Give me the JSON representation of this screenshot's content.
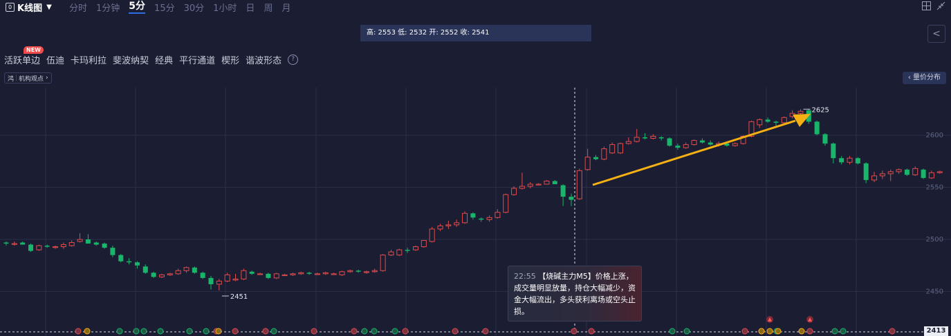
{
  "toolbar": {
    "chart_type_label": "K线图",
    "periods": [
      "分时",
      "1分钟",
      "5分",
      "15分",
      "30分",
      "1小时",
      "日",
      "周",
      "月"
    ],
    "active_period": "5分"
  },
  "ohlc_text": "高: 2553 低: 2532 开: 2552 收: 2541",
  "patterns": {
    "badge": "NEW",
    "items": [
      "活跃单边",
      "伍迪",
      "卡玛利拉",
      "斐波纳契",
      "经典",
      "平行通道",
      "楔形",
      "谐波形态"
    ],
    "help": "?"
  },
  "institution_button": {
    "icon_text": "鸿",
    "label": "机构观点"
  },
  "volume_profile_button": "量价分布",
  "price_axis_labels": [
    "2600",
    "2550",
    "2500",
    "2450"
  ],
  "current_price_tag": "2413",
  "annotations": {
    "high_label": "2625",
    "low_label": "2451"
  },
  "tooltip": {
    "time": "22:55",
    "title": "【烧碱主力M5】价格上涨，",
    "body": "成交量明显放量，持仓大幅减少，资金大幅流出，多头获利离场或空头止损。"
  },
  "colors": {
    "background": "#1b1e33",
    "up": "#e14b4b",
    "down": "#19b56a",
    "arrow": "#f5b014",
    "grid": "#2a2f48"
  },
  "chart_data": {
    "type": "candlestick",
    "ylim": [
      2413,
      2625
    ],
    "yticks": [
      2600,
      2550,
      2500,
      2450
    ],
    "high": 2625,
    "low": 2451,
    "candles": [
      [
        2497,
        2498,
        2494,
        2496
      ],
      [
        2496,
        2498,
        2494,
        2496
      ],
      [
        2497,
        2498,
        2495,
        2495
      ],
      [
        2495,
        2496,
        2488,
        2489
      ],
      [
        2490,
        2495,
        2489,
        2494
      ],
      [
        2494,
        2495,
        2492,
        2493
      ],
      [
        2493,
        2494,
        2491,
        2493
      ],
      [
        2493,
        2497,
        2491,
        2495
      ],
      [
        2494,
        2499,
        2493,
        2497
      ],
      [
        2498,
        2506,
        2497,
        2500
      ],
      [
        2500,
        2505,
        2496,
        2496
      ],
      [
        2497,
        2498,
        2494,
        2495
      ],
      [
        2496,
        2497,
        2491,
        2492
      ],
      [
        2492,
        2494,
        2483,
        2485
      ],
      [
        2485,
        2486,
        2478,
        2479
      ],
      [
        2479,
        2482,
        2476,
        2478
      ],
      [
        2478,
        2479,
        2472,
        2475
      ],
      [
        2474,
        2476,
        2467,
        2468
      ],
      [
        2468,
        2469,
        2463,
        2464
      ],
      [
        2464,
        2467,
        2463,
        2466
      ],
      [
        2466,
        2468,
        2465,
        2467
      ],
      [
        2467,
        2472,
        2466,
        2470
      ],
      [
        2470,
        2474,
        2468,
        2473
      ],
      [
        2473,
        2474,
        2467,
        2468
      ],
      [
        2468,
        2469,
        2462,
        2463
      ],
      [
        2463,
        2465,
        2452,
        2457
      ],
      [
        2457,
        2462,
        2451,
        2460
      ],
      [
        2460,
        2468,
        2459,
        2466
      ],
      [
        2461,
        2467,
        2460,
        2462
      ],
      [
        2462,
        2472,
        2461,
        2470
      ],
      [
        2469,
        2470,
        2466,
        2467
      ],
      [
        2467,
        2468,
        2466,
        2467
      ],
      [
        2467,
        2468,
        2462,
        2463
      ],
      [
        2463,
        2468,
        2462,
        2467
      ],
      [
        2466,
        2467,
        2465,
        2466
      ],
      [
        2466,
        2468,
        2465,
        2467
      ],
      [
        2467,
        2469,
        2466,
        2468
      ],
      [
        2468,
        2469,
        2466,
        2467
      ],
      [
        2467,
        2468,
        2466,
        2467
      ],
      [
        2467,
        2469,
        2466,
        2468
      ],
      [
        2467,
        2468,
        2466,
        2467
      ],
      [
        2466,
        2470,
        2465,
        2469
      ],
      [
        2469,
        2471,
        2468,
        2470
      ],
      [
        2470,
        2471,
        2468,
        2469
      ],
      [
        2469,
        2470,
        2467,
        2469
      ],
      [
        2469,
        2472,
        2468,
        2470
      ],
      [
        2470,
        2486,
        2469,
        2485
      ],
      [
        2485,
        2490,
        2484,
        2488
      ],
      [
        2485,
        2491,
        2484,
        2490
      ],
      [
        2490,
        2492,
        2487,
        2489
      ],
      [
        2490,
        2494,
        2489,
        2493
      ],
      [
        2493,
        2499,
        2492,
        2499
      ],
      [
        2498,
        2512,
        2497,
        2510
      ],
      [
        2510,
        2515,
        2508,
        2513
      ],
      [
        2513,
        2518,
        2510,
        2514
      ],
      [
        2514,
        2519,
        2512,
        2516
      ],
      [
        2516,
        2527,
        2515,
        2525
      ],
      [
        2525,
        2526,
        2519,
        2521
      ],
      [
        2520,
        2521,
        2517,
        2519
      ],
      [
        2519,
        2523,
        2517,
        2521
      ],
      [
        2521,
        2529,
        2520,
        2526
      ],
      [
        2526,
        2544,
        2525,
        2543
      ],
      [
        2543,
        2551,
        2542,
        2549
      ],
      [
        2549,
        2564,
        2548,
        2551
      ],
      [
        2551,
        2555,
        2549,
        2553
      ],
      [
        2553,
        2554,
        2552,
        2553
      ],
      [
        2553,
        2557,
        2553,
        2556
      ],
      [
        2556,
        2557,
        2553,
        2553
      ],
      [
        2552,
        2553,
        2532,
        2541
      ],
      [
        2541,
        2544,
        2532,
        2538
      ],
      [
        2539,
        2568,
        2538,
        2566
      ],
      [
        2567,
        2587,
        2566,
        2579
      ],
      [
        2579,
        2581,
        2576,
        2577
      ],
      [
        2577,
        2589,
        2576,
        2587
      ],
      [
        2583,
        2593,
        2582,
        2591
      ],
      [
        2583,
        2593,
        2582,
        2592
      ],
      [
        2592,
        2598,
        2591,
        2594
      ],
      [
        2594,
        2606,
        2593,
        2598
      ],
      [
        2598,
        2602,
        2596,
        2597
      ],
      [
        2597,
        2601,
        2596,
        2599
      ],
      [
        2598,
        2599,
        2595,
        2597
      ],
      [
        2597,
        2598,
        2589,
        2590
      ],
      [
        2590,
        2592,
        2586,
        2588
      ],
      [
        2588,
        2593,
        2587,
        2591
      ],
      [
        2591,
        2596,
        2590,
        2595
      ],
      [
        2595,
        2597,
        2592,
        2593
      ],
      [
        2593,
        2595,
        2590,
        2591
      ],
      [
        2591,
        2594,
        2589,
        2592
      ],
      [
        2592,
        2593,
        2589,
        2590
      ],
      [
        2590,
        2593,
        2589,
        2592
      ],
      [
        2592,
        2600,
        2591,
        2599
      ],
      [
        2599,
        2614,
        2598,
        2613
      ],
      [
        2610,
        2616,
        2607,
        2615
      ],
      [
        2615,
        2617,
        2612,
        2613
      ],
      [
        2613,
        2614,
        2607,
        2612
      ],
      [
        2612,
        2618,
        2611,
        2617
      ],
      [
        2618,
        2624,
        2616,
        2621
      ],
      [
        2621,
        2625,
        2615,
        2623
      ],
      [
        2624,
        2625,
        2611,
        2613
      ],
      [
        2613,
        2614,
        2600,
        2601
      ],
      [
        2601,
        2602,
        2590,
        2592
      ],
      [
        2592,
        2593,
        2573,
        2578
      ],
      [
        2578,
        2580,
        2572,
        2574
      ],
      [
        2574,
        2580,
        2572,
        2578
      ],
      [
        2578,
        2579,
        2572,
        2573
      ],
      [
        2573,
        2574,
        2554,
        2557
      ],
      [
        2557,
        2565,
        2555,
        2561
      ],
      [
        2561,
        2566,
        2558,
        2563
      ],
      [
        2563,
        2567,
        2556,
        2565
      ],
      [
        2565,
        2568,
        2563,
        2567
      ],
      [
        2567,
        2568,
        2561,
        2562
      ],
      [
        2562,
        2570,
        2561,
        2568
      ],
      [
        2567,
        2568,
        2558,
        2559
      ],
      [
        2559,
        2566,
        2558,
        2564
      ],
      [
        2564,
        2566,
        2563,
        2565
      ]
    ]
  },
  "event_markers": {
    "up": [
      113,
      313,
      340,
      384,
      454,
      512,
      586,
      658,
      702,
      830,
      855,
      1077,
      1101,
      1171,
      1290
    ],
    "down": [
      173,
      197,
      208,
      232,
      274,
      298,
      396,
      527,
      541,
      571,
      972,
      993,
      1123,
      1207,
      1219
    ],
    "yellow": [
      126,
      316,
      1101,
      1113,
      1125,
      1159
    ],
    "triangle_flags": [
      1113,
      1171
    ]
  }
}
